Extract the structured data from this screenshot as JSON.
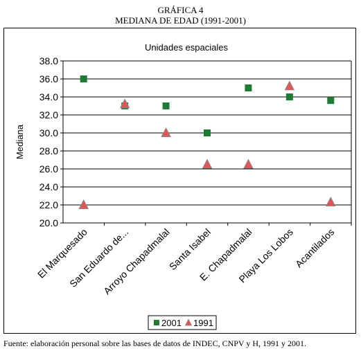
{
  "figure": {
    "label": "GRÁFICA 4",
    "title": "MEDIANA DE EDAD (1991-2001)",
    "source": "Fuente: elaboración personal sobre las bases de datos de INDEC, CNPV y H, 1991 y 2001."
  },
  "chart_data": {
    "type": "scatter",
    "title": "Unidades espaciales",
    "xlabel": "",
    "ylabel": "Mediana",
    "ylim": [
      20.0,
      38.0
    ],
    "yticks": [
      "20.0",
      "22.0",
      "24.0",
      "26.0",
      "28.0",
      "30.0",
      "32.0",
      "34.0",
      "36.0",
      "38.0"
    ],
    "grid": true,
    "legend": "bottom-center",
    "categories": [
      "El Marquesado",
      "San Eduardo de...",
      "Arroyo Chapadmalal",
      "Santa Isabel",
      "E. Chapadmalal",
      "Playa Los Lobos",
      "Acantilados"
    ],
    "series": [
      {
        "name": "2001",
        "marker": "square",
        "color": "#1e7b34",
        "values": [
          36.0,
          33.0,
          33.0,
          30.0,
          35.0,
          34.0,
          33.6
        ]
      },
      {
        "name": "1991",
        "marker": "triangle",
        "color": "#e05555",
        "values": [
          22.0,
          33.2,
          30.0,
          26.5,
          26.5,
          35.2,
          22.3
        ]
      }
    ]
  }
}
